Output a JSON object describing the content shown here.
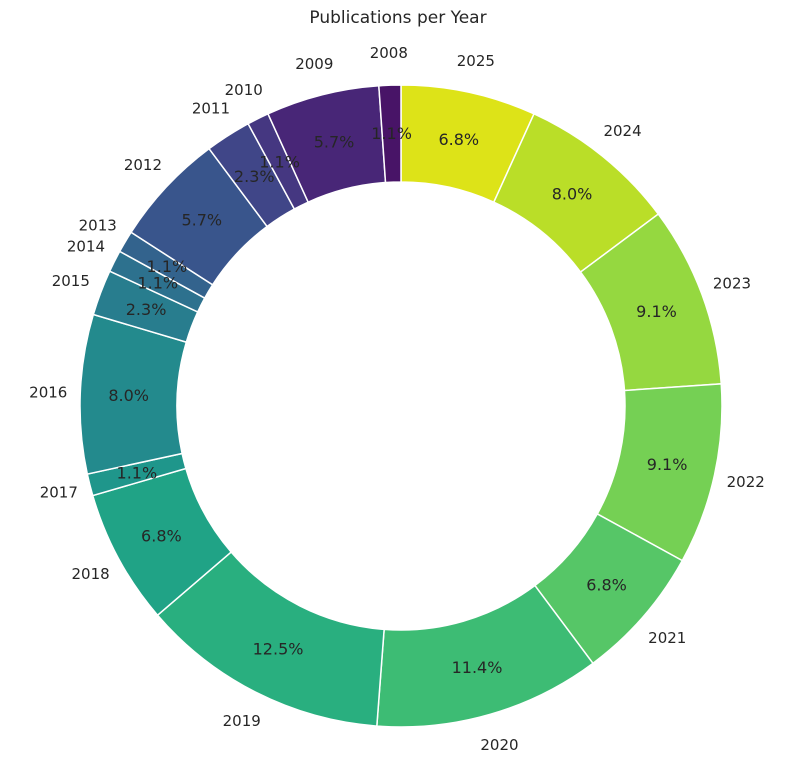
{
  "chart_data": {
    "type": "pie",
    "title": "Publications per Year",
    "donut": true,
    "start_angle_deg": 90,
    "direction": "clockwise",
    "categories": [
      "2025",
      "2024",
      "2023",
      "2022",
      "2021",
      "2020",
      "2019",
      "2018",
      "2017",
      "2016",
      "2015",
      "2014",
      "2013",
      "2012",
      "2011",
      "2010",
      "2009",
      "2008"
    ],
    "values": [
      6.8,
      8.0,
      9.1,
      9.1,
      6.8,
      11.4,
      12.5,
      6.8,
      1.1,
      8.0,
      2.3,
      1.1,
      1.1,
      5.7,
      2.3,
      1.1,
      5.7,
      1.1
    ],
    "labels": [
      "6.8%",
      "8.0%",
      "9.1%",
      "9.1%",
      "6.8%",
      "11.4%",
      "12.5%",
      "6.8%",
      "1.1%",
      "8.0%",
      "2.3%",
      "1.1%",
      "1.1%",
      "5.7%",
      "2.3%",
      "1.1%",
      "5.7%",
      "1.1%"
    ],
    "colors": [
      "#dde318",
      "#bade28",
      "#95d840",
      "#75d054",
      "#56c667",
      "#3dbc74",
      "#29af7f",
      "#20a386",
      "#1f968b",
      "#238a8d",
      "#287d8e",
      "#2d718e",
      "#33638d",
      "#39558c",
      "#404688",
      "#453781",
      "#482677",
      "#481467"
    ]
  }
}
